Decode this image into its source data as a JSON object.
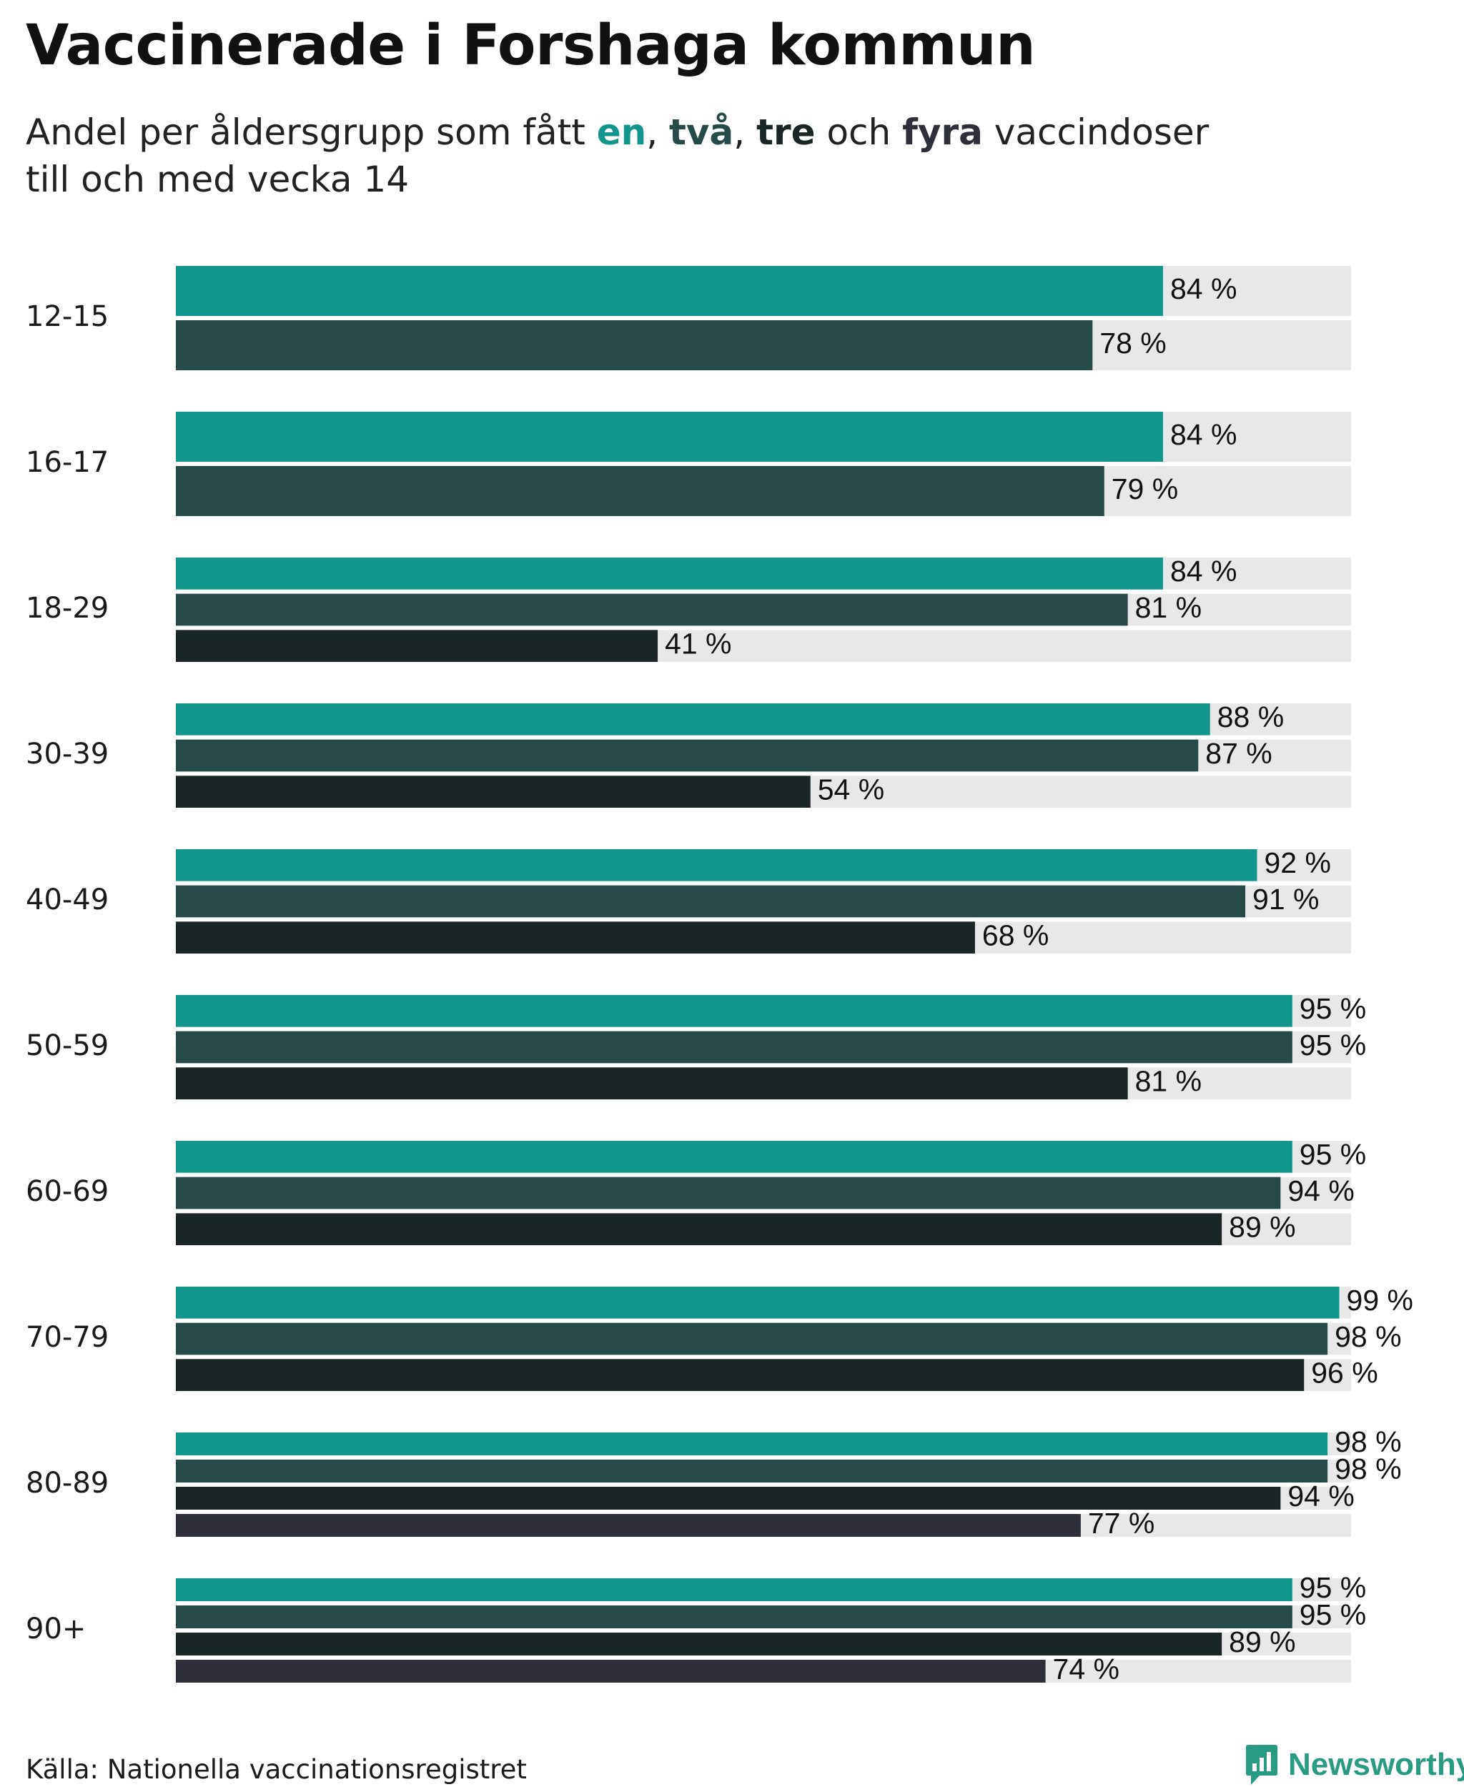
{
  "header": {
    "title": "Vaccinerade i Forshaga kommun",
    "subtitle": {
      "prefix": "Andel per åldersgrupp som fått ",
      "dose_one": "en",
      "sep_one": ", ",
      "dose_two": "två",
      "sep_two": ", ",
      "dose_three": "tre",
      "and_word": " och ",
      "dose_four": "fyra",
      "suffix": " vaccindoser",
      "line_two": "till och med vecka 14"
    }
  },
  "colors": {
    "dose1": "#12958a",
    "dose2": "#264a47",
    "dose3": "#1a2626",
    "dose4": "#2f2e3b",
    "track": "#e8e8e8"
  },
  "chart_data": {
    "type": "bar",
    "orientation": "horizontal",
    "title": "Vaccinerade i Forshaga kommun",
    "subtitle": "Andel per åldersgrupp som fått en, två, tre och fyra vaccindoser till och med vecka 14",
    "xlim": [
      0,
      100
    ],
    "value_suffix": " %",
    "series": [
      "en dos",
      "två doser",
      "tre doser",
      "fyra doser"
    ],
    "groups": [
      {
        "label": "12-15",
        "values": [
          84,
          78
        ]
      },
      {
        "label": "16-17",
        "values": [
          84,
          79
        ]
      },
      {
        "label": "18-29",
        "values": [
          84,
          81,
          41
        ]
      },
      {
        "label": "30-39",
        "values": [
          88,
          87,
          54
        ]
      },
      {
        "label": "40-49",
        "values": [
          92,
          91,
          68
        ]
      },
      {
        "label": "50-59",
        "values": [
          95,
          95,
          81
        ]
      },
      {
        "label": "60-69",
        "values": [
          95,
          94,
          89
        ]
      },
      {
        "label": "70-79",
        "values": [
          99,
          98,
          96
        ]
      },
      {
        "label": "80-89",
        "values": [
          98,
          98,
          94,
          77
        ]
      },
      {
        "label": "90+",
        "values": [
          95,
          95,
          89,
          74
        ]
      }
    ]
  },
  "footer": {
    "source": "Källa: Nationella vaccinationsregistret",
    "brand": "Newsworthy",
    "brand_icon": "newsworthy-logo-icon"
  }
}
